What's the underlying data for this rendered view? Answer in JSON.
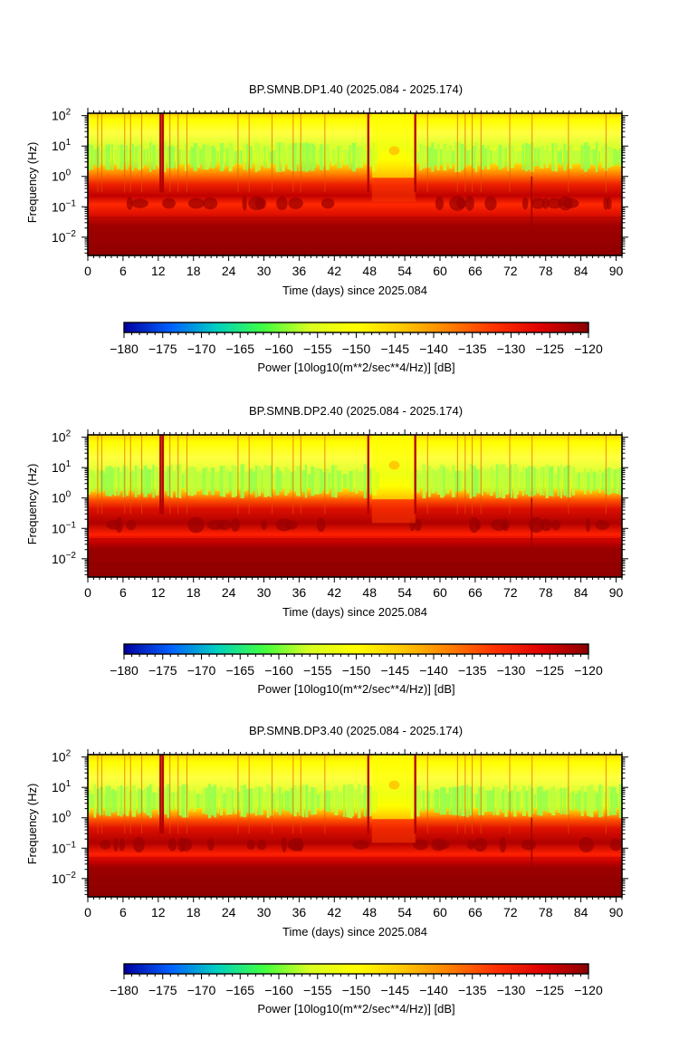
{
  "chart_data": [
    {
      "type": "heatmap",
      "title": "BP.SMNB.DP1.40 (2025.084 - 2025.174)",
      "xlabel": "Time (days) since 2025.084",
      "ylabel": "Frequency (Hz)",
      "x_ticks": [
        "0",
        "6",
        "12",
        "18",
        "24",
        "30",
        "36",
        "42",
        "48",
        "54",
        "60",
        "66",
        "72",
        "78",
        "84",
        "90"
      ],
      "xlim": [
        0,
        91
      ],
      "y_scale": "log",
      "ylim": [
        0.0025,
        120
      ],
      "y_ticks": [
        {
          "base": "10",
          "exp": "2"
        },
        {
          "base": "10",
          "exp": "1"
        },
        {
          "base": "10",
          "exp": "0"
        },
        {
          "base": "10",
          "exp": "−1"
        },
        {
          "base": "10",
          "exp": "−2"
        }
      ],
      "colorbar": {
        "range": [
          -180,
          -120
        ],
        "ticks": [
          "−180",
          "−175",
          "−170",
          "−165",
          "−160",
          "−155",
          "−150",
          "−145",
          "−140",
          "−135",
          "−130",
          "−125",
          "−120"
        ],
        "label": "Power [10log10(m**2/sec**4/Hz)] [dB]",
        "colormap": [
          "#0000a0",
          "#0060ff",
          "#00d0c0",
          "#40ff40",
          "#d8ff20",
          "#ffff00",
          "#ffc800",
          "#ff8000",
          "#ff3000",
          "#dd0000",
          "#8b0000"
        ]
      }
    },
    {
      "type": "heatmap",
      "title": "BP.SMNB.DP2.40 (2025.084 - 2025.174)",
      "xlabel": "Time (days) since 2025.084",
      "ylabel": "Frequency (Hz)",
      "x_ticks": [
        "0",
        "6",
        "12",
        "18",
        "24",
        "30",
        "36",
        "42",
        "48",
        "54",
        "60",
        "66",
        "72",
        "78",
        "84",
        "90"
      ],
      "xlim": [
        0,
        91
      ],
      "y_scale": "log",
      "ylim": [
        0.0025,
        120
      ],
      "y_ticks": [
        {
          "base": "10",
          "exp": "2"
        },
        {
          "base": "10",
          "exp": "1"
        },
        {
          "base": "10",
          "exp": "0"
        },
        {
          "base": "10",
          "exp": "−1"
        },
        {
          "base": "10",
          "exp": "−2"
        }
      ],
      "colorbar": {
        "range": [
          -180,
          -120
        ],
        "ticks": [
          "−180",
          "−175",
          "−170",
          "−165",
          "−160",
          "−155",
          "−150",
          "−145",
          "−140",
          "−135",
          "−130",
          "−125",
          "−120"
        ],
        "label": "Power [10log10(m**2/sec**4/Hz)] [dB]",
        "colormap": [
          "#0000a0",
          "#0060ff",
          "#00d0c0",
          "#40ff40",
          "#d8ff20",
          "#ffff00",
          "#ffc800",
          "#ff8000",
          "#ff3000",
          "#dd0000",
          "#8b0000"
        ]
      }
    },
    {
      "type": "heatmap",
      "title": "BP.SMNB.DP3.40 (2025.084 - 2025.174)",
      "xlabel": "Time (days) since 2025.084",
      "ylabel": "Frequency (Hz)",
      "x_ticks": [
        "0",
        "6",
        "12",
        "18",
        "24",
        "30",
        "36",
        "42",
        "48",
        "54",
        "60",
        "66",
        "72",
        "78",
        "84",
        "90"
      ],
      "xlim": [
        0,
        91
      ],
      "y_scale": "log",
      "ylim": [
        0.0025,
        120
      ],
      "y_ticks": [
        {
          "base": "10",
          "exp": "2"
        },
        {
          "base": "10",
          "exp": "1"
        },
        {
          "base": "10",
          "exp": "0"
        },
        {
          "base": "10",
          "exp": "−1"
        },
        {
          "base": "10",
          "exp": "−2"
        }
      ],
      "colorbar": {
        "range": [
          -180,
          -120
        ],
        "ticks": [
          "−180",
          "−175",
          "−170",
          "−165",
          "−160",
          "−155",
          "−150",
          "−145",
          "−140",
          "−135",
          "−130",
          "−125",
          "−120"
        ],
        "label": "Power [10log10(m**2/sec**4/Hz)] [dB]",
        "colormap": [
          "#0000a0",
          "#0060ff",
          "#00d0c0",
          "#40ff40",
          "#d8ff20",
          "#ffff00",
          "#ffc800",
          "#ff8000",
          "#ff3000",
          "#dd0000",
          "#8b0000"
        ]
      }
    }
  ]
}
